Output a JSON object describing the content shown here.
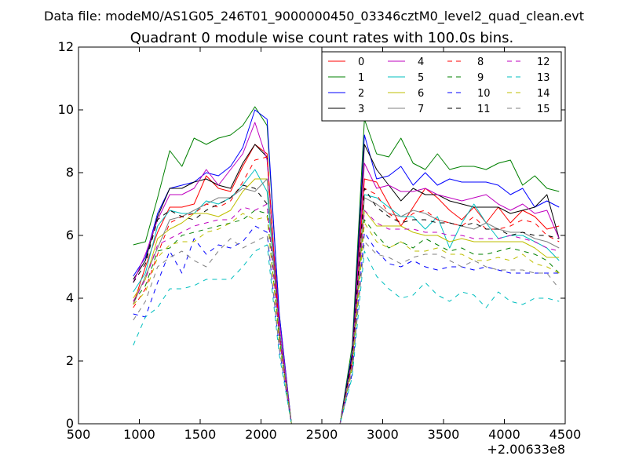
{
  "chart_data": {
    "type": "line",
    "suptitle": "Data file: modeM0/AS1G05_246T01_9000000450_03346cztM0_level2_quad_clean.evt",
    "title": "Quadrant 0 module wise count rates with 100.0s bins.",
    "xlabel": "",
    "ylabel": "",
    "x_offset_label": "+2.00633e8",
    "xlim": [
      500,
      4500
    ],
    "ylim": [
      0,
      12
    ],
    "xticks": [
      500,
      1000,
      1500,
      2000,
      2500,
      3000,
      3500,
      4000,
      4500
    ],
    "xtick_labels": [
      "500",
      "1000",
      "1500",
      "2000",
      "2500",
      "3000",
      "3500",
      "4000",
      "4500"
    ],
    "yticks": [
      0,
      2,
      4,
      6,
      8,
      10,
      12
    ],
    "ytick_labels": [
      "0",
      "2",
      "4",
      "6",
      "8",
      "10",
      "12"
    ],
    "grid": false,
    "legend_position": "top-right",
    "legend_columns": 4,
    "x": [
      950,
      1050,
      1150,
      1250,
      1350,
      1450,
      1550,
      1650,
      1750,
      1850,
      1950,
      2050,
      2150,
      2250,
      2350,
      2450,
      2550,
      2650,
      2750,
      2850,
      2950,
      3050,
      3150,
      3250,
      3350,
      3450,
      3550,
      3650,
      3750,
      3850,
      3950,
      4050,
      4150,
      4250,
      4350,
      4450
    ],
    "series": [
      {
        "name": "0",
        "color": "#ff0000",
        "dash": "solid",
        "values": [
          3.8,
          5.0,
          6.1,
          6.9,
          6.9,
          7.0,
          7.9,
          7.5,
          7.4,
          8.2,
          8.9,
          8.6,
          3.0,
          0.0,
          0.0,
          0.0,
          0.0,
          0.0,
          2.2,
          7.8,
          7.7,
          7.0,
          6.3,
          6.9,
          7.5,
          7.2,
          6.8,
          6.5,
          6.9,
          6.4,
          6.9,
          6.4,
          6.8,
          6.6,
          6.2,
          6.3
        ]
      },
      {
        "name": "1",
        "color": "#008000",
        "dash": "solid",
        "values": [
          5.7,
          5.8,
          7.2,
          8.7,
          8.2,
          9.1,
          8.9,
          9.1,
          9.2,
          9.5,
          10.1,
          9.5,
          3.5,
          0.0,
          0.0,
          0.0,
          0.0,
          0.0,
          2.5,
          9.7,
          8.6,
          8.5,
          9.1,
          8.3,
          8.1,
          8.6,
          8.1,
          8.2,
          8.2,
          8.1,
          8.3,
          8.4,
          7.6,
          7.9,
          7.5,
          7.4
        ]
      },
      {
        "name": "2",
        "color": "#0000ff",
        "dash": "solid",
        "values": [
          4.7,
          5.3,
          6.7,
          7.5,
          7.6,
          7.7,
          8.0,
          7.9,
          8.2,
          8.8,
          10.0,
          9.7,
          3.5,
          0.0,
          0.0,
          0.0,
          0.0,
          0.0,
          2.3,
          9.2,
          7.8,
          7.9,
          8.2,
          7.6,
          8.0,
          7.6,
          7.8,
          7.7,
          7.7,
          7.7,
          7.6,
          7.3,
          7.5,
          6.9,
          7.1,
          6.9
        ]
      },
      {
        "name": "3",
        "color": "#000000",
        "dash": "solid",
        "values": [
          4.6,
          5.2,
          6.6,
          7.5,
          7.5,
          7.7,
          7.8,
          7.6,
          7.5,
          8.3,
          8.9,
          8.5,
          3.0,
          0.0,
          0.0,
          0.0,
          0.0,
          0.0,
          2.2,
          8.9,
          8.1,
          7.6,
          7.1,
          7.5,
          7.3,
          7.3,
          7.1,
          7.0,
          6.9,
          6.9,
          6.9,
          6.7,
          6.8,
          6.9,
          7.3,
          5.9
        ]
      },
      {
        "name": "4",
        "color": "#bf00bf",
        "dash": "solid",
        "values": [
          4.5,
          5.4,
          6.5,
          7.3,
          7.3,
          7.5,
          8.1,
          7.6,
          8.1,
          8.6,
          9.6,
          8.4,
          3.3,
          0.0,
          0.0,
          0.0,
          0.0,
          0.0,
          2.1,
          8.3,
          7.5,
          7.6,
          7.4,
          7.4,
          7.5,
          7.3,
          7.2,
          7.1,
          7.2,
          7.3,
          7.0,
          6.8,
          7.0,
          6.7,
          6.8,
          5.9
        ]
      },
      {
        "name": "5",
        "color": "#00bfbf",
        "dash": "solid",
        "values": [
          4.2,
          4.8,
          6.3,
          6.8,
          6.7,
          6.7,
          7.1,
          7.0,
          7.2,
          7.6,
          8.1,
          7.4,
          3.0,
          0.0,
          0.0,
          0.0,
          0.0,
          0.0,
          1.9,
          7.3,
          7.2,
          6.9,
          6.6,
          6.6,
          6.2,
          6.6,
          5.6,
          6.4,
          7.0,
          6.4,
          5.9,
          6.0,
          6.0,
          5.8,
          5.6,
          5.2
        ]
      },
      {
        "name": "6",
        "color": "#bfbf00",
        "dash": "solid",
        "values": [
          4.0,
          4.6,
          5.9,
          6.2,
          6.4,
          6.7,
          6.7,
          6.6,
          6.8,
          7.4,
          7.8,
          7.8,
          2.8,
          0.0,
          0.0,
          0.0,
          0.0,
          0.0,
          1.9,
          6.8,
          6.3,
          6.3,
          6.3,
          6.1,
          6.0,
          6.0,
          5.8,
          5.9,
          5.8,
          5.8,
          5.8,
          5.8,
          5.8,
          5.6,
          5.3,
          5.3
        ]
      },
      {
        "name": "7",
        "color": "#808080",
        "dash": "solid",
        "values": [
          3.8,
          4.7,
          5.6,
          6.5,
          6.6,
          6.8,
          7.0,
          7.2,
          7.2,
          7.5,
          7.4,
          7.8,
          2.9,
          0.0,
          0.0,
          0.0,
          0.0,
          0.0,
          2.0,
          7.2,
          7.0,
          6.7,
          6.6,
          6.8,
          6.7,
          6.5,
          6.4,
          6.3,
          6.2,
          6.4,
          6.2,
          6.1,
          6.1,
          5.9,
          5.8,
          5.6
        ]
      },
      {
        "name": "8",
        "color": "#ff0000",
        "dash": "dashed",
        "values": [
          3.7,
          4.3,
          5.4,
          6.4,
          6.6,
          6.7,
          7.0,
          6.9,
          7.1,
          7.7,
          8.4,
          8.5,
          2.9,
          0.0,
          0.0,
          0.0,
          0.0,
          0.0,
          2.0,
          7.5,
          7.3,
          6.7,
          6.4,
          6.7,
          6.8,
          6.5,
          6.4,
          6.3,
          6.6,
          6.2,
          6.2,
          6.3,
          6.5,
          6.4,
          6.0,
          5.8
        ]
      },
      {
        "name": "9",
        "color": "#008000",
        "dash": "dashed",
        "values": [
          3.9,
          4.4,
          5.5,
          5.6,
          6.0,
          6.1,
          6.2,
          6.3,
          6.4,
          6.5,
          6.8,
          6.7,
          2.7,
          0.0,
          0.0,
          0.0,
          0.0,
          0.0,
          1.8,
          6.5,
          6.0,
          5.6,
          5.8,
          5.6,
          5.9,
          5.7,
          5.5,
          5.6,
          5.4,
          5.4,
          5.5,
          5.6,
          5.5,
          5.4,
          5.2,
          4.8
        ]
      },
      {
        "name": "10",
        "color": "#0000ff",
        "dash": "dashed",
        "values": [
          3.5,
          3.4,
          4.5,
          5.5,
          4.8,
          5.9,
          5.4,
          5.7,
          5.6,
          5.8,
          6.3,
          6.1,
          2.4,
          0.0,
          0.0,
          0.0,
          0.0,
          0.0,
          1.6,
          6.1,
          5.5,
          5.1,
          5.0,
          5.2,
          5.0,
          4.9,
          5.0,
          5.0,
          4.9,
          5.0,
          4.9,
          4.8,
          4.8,
          4.8,
          4.8,
          4.8
        ]
      },
      {
        "name": "11",
        "color": "#000000",
        "dash": "dashed",
        "values": [
          4.5,
          5.1,
          6.5,
          6.8,
          6.6,
          6.5,
          6.8,
          7.0,
          7.2,
          7.6,
          7.5,
          7.0,
          2.8,
          0.0,
          0.0,
          0.0,
          0.0,
          0.0,
          2.1,
          7.5,
          6.9,
          6.6,
          6.4,
          6.5,
          6.5,
          6.4,
          6.4,
          6.3,
          6.4,
          6.2,
          6.2,
          6.0,
          6.1,
          6.0,
          6.0,
          5.9
        ]
      },
      {
        "name": "12",
        "color": "#bf00bf",
        "dash": "dashed",
        "values": [
          3.9,
          4.6,
          5.7,
          5.9,
          6.1,
          6.3,
          6.4,
          6.5,
          6.5,
          6.9,
          6.8,
          7.0,
          2.8,
          0.0,
          0.0,
          0.0,
          0.0,
          0.0,
          1.9,
          6.8,
          6.4,
          6.2,
          6.2,
          6.2,
          6.1,
          6.1,
          6.0,
          6.0,
          5.9,
          5.9,
          5.9,
          6.0,
          5.9,
          5.8,
          5.6,
          5.5
        ]
      },
      {
        "name": "13",
        "color": "#00bfbf",
        "dash": "dashed",
        "values": [
          2.5,
          3.4,
          3.7,
          4.3,
          4.3,
          4.4,
          4.6,
          4.6,
          4.6,
          5.0,
          5.5,
          5.7,
          2.2,
          0.0,
          0.0,
          0.0,
          0.0,
          0.0,
          1.5,
          5.5,
          4.7,
          4.3,
          4.0,
          4.1,
          4.5,
          4.1,
          3.9,
          4.2,
          4.1,
          3.7,
          4.2,
          3.9,
          3.8,
          4.0,
          4.0,
          3.9
        ]
      },
      {
        "name": "14",
        "color": "#bfbf00",
        "dash": "dashed",
        "values": [
          3.8,
          4.2,
          5.3,
          5.7,
          5.8,
          5.8,
          6.1,
          6.2,
          6.4,
          6.7,
          6.5,
          6.6,
          2.6,
          0.0,
          0.0,
          0.0,
          0.0,
          0.0,
          1.8,
          6.4,
          5.8,
          5.6,
          5.8,
          5.5,
          5.5,
          5.6,
          5.4,
          5.4,
          5.2,
          5.2,
          5.3,
          5.2,
          5.4,
          5.1,
          5.0,
          4.8
        ]
      },
      {
        "name": "15",
        "color": "#808080",
        "dash": "dashed",
        "values": [
          3.3,
          3.9,
          5.0,
          5.3,
          5.5,
          5.2,
          5.0,
          5.5,
          5.9,
          5.6,
          5.8,
          6.0,
          2.4,
          0.0,
          0.0,
          0.0,
          0.0,
          0.0,
          1.7,
          5.8,
          5.4,
          5.3,
          5.1,
          5.3,
          5.4,
          5.4,
          5.2,
          5.0,
          5.2,
          5.0,
          4.9,
          4.9,
          4.9,
          4.8,
          4.8,
          4.3
        ]
      }
    ]
  }
}
